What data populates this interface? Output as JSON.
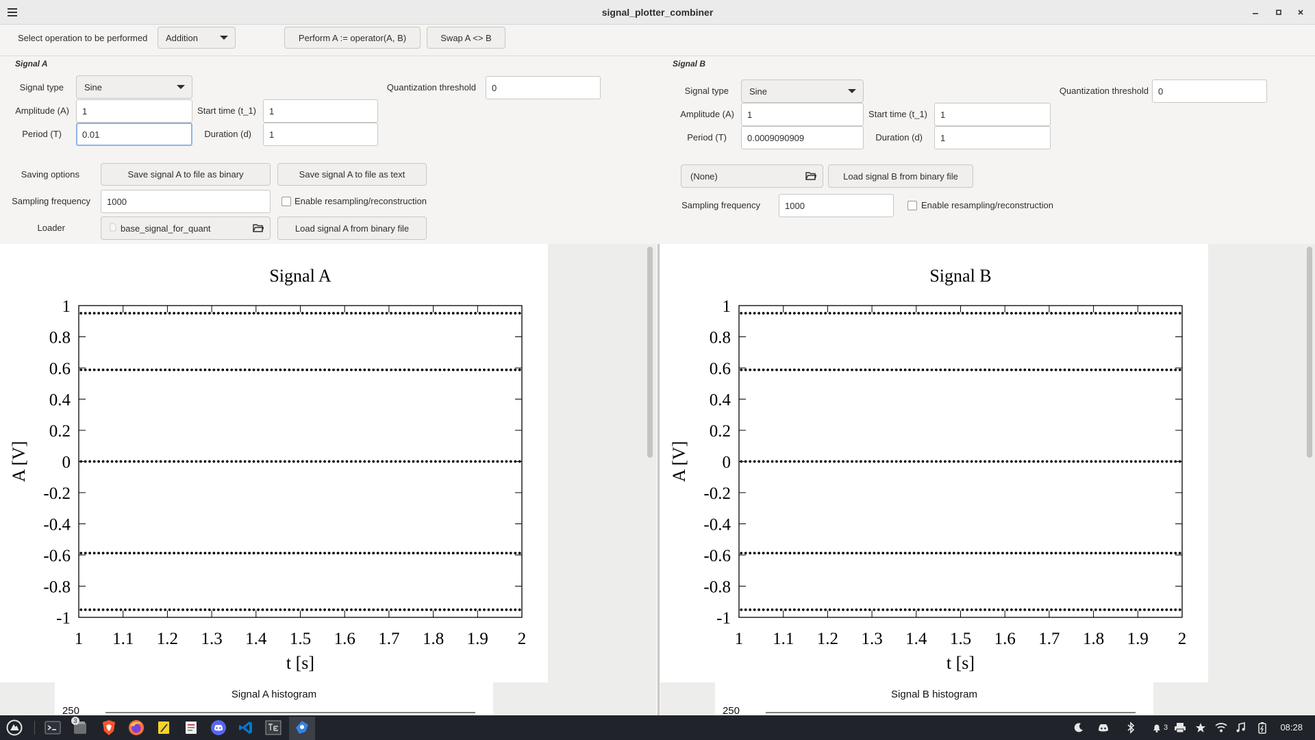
{
  "window": {
    "title": "signal_plotter_combiner"
  },
  "operation": {
    "label": "Select operation to be performed",
    "selected": "Addition",
    "perform_label": "Perform A := operator(A, B)",
    "swap_label": "Swap A <> B"
  },
  "signal_a": {
    "group_title": "Signal A",
    "type_label": "Signal type",
    "type_value": "Sine",
    "quant_label": "Quantization threshold",
    "quant_value": "0",
    "amplitude_label": "Amplitude (A)",
    "amplitude_value": "1",
    "start_label": "Start time (t_1)",
    "start_value": "1",
    "period_label": "Period (T)",
    "period_value": "0.01",
    "duration_label": "Duration (d)",
    "duration_value": "1",
    "saving_label": "Saving options",
    "save_binary_label": "Save signal A to file as binary",
    "save_text_label": "Save signal A to file as text",
    "sampling_label": "Sampling frequency",
    "sampling_value": "1000",
    "resample_label": "Enable resampling/reconstruction",
    "loader_label": "Loader",
    "loader_file": "base_signal_for_quant",
    "load_label": "Load signal  A from binary file"
  },
  "signal_b": {
    "group_title": "Signal B",
    "type_label": "Signal type",
    "type_value": "Sine",
    "quant_label": "Quantization threshold",
    "quant_value": "0",
    "amplitude_label": "Amplitude (A)",
    "amplitude_value": "1",
    "start_label": "Start time (t_1)",
    "start_value": "1",
    "period_label": "Period (T)",
    "period_value": "0.0009090909",
    "duration_label": "Duration (d)",
    "duration_value": "1",
    "loader_file": "(None)",
    "load_label": "Load signal  B from binary file",
    "sampling_label": "Sampling frequency",
    "sampling_value": "1000",
    "resample_label": "Enable resampling/reconstruction"
  },
  "chart_data": [
    {
      "type": "scatter",
      "title": "Signal A",
      "xlabel": "t [s]",
      "ylabel": "A [V]",
      "xlim": [
        1,
        2
      ],
      "ylim": [
        -1,
        1
      ],
      "xticks": [
        "1",
        "1.1",
        "1.2",
        "1.3",
        "1.4",
        "1.5",
        "1.6",
        "1.7",
        "1.8",
        "1.9",
        "2"
      ],
      "yticks": [
        "1",
        "0.8",
        "0.6",
        "0.4",
        "0.2",
        "0",
        "-0.2",
        "-0.4",
        "-0.6",
        "-0.8",
        "-1"
      ],
      "sample_levels": [
        0.951,
        0.588,
        0,
        -0.588,
        -0.951
      ],
      "samples_per_level": 100,
      "histogram_title": "Signal A histogram",
      "histogram_ymax": "250"
    },
    {
      "type": "scatter",
      "title": "Signal B",
      "xlabel": "t [s]",
      "ylabel": "A [V]",
      "xlim": [
        1,
        2
      ],
      "ylim": [
        -1,
        1
      ],
      "xticks": [
        "1",
        "1.1",
        "1.2",
        "1.3",
        "1.4",
        "1.5",
        "1.6",
        "1.7",
        "1.8",
        "1.9",
        "2"
      ],
      "yticks": [
        "1",
        "0.8",
        "0.6",
        "0.4",
        "0.2",
        "0",
        "-0.2",
        "-0.4",
        "-0.6",
        "-0.8",
        "-1"
      ],
      "sample_levels": [
        0.951,
        0.588,
        0,
        -0.588,
        -0.951
      ],
      "samples_per_level": 100,
      "histogram_title": "Signal B histogram",
      "histogram_ymax": "250"
    }
  ],
  "taskbar": {
    "apps": [
      "app-menu-icon",
      "terminal-icon",
      "files-icon",
      "brave-browser-icon",
      "firefox-icon",
      "notes-icon",
      "document-viewer-icon",
      "discord-icon",
      "vscode-icon",
      "texmaker-icon",
      "python-app-icon"
    ],
    "files_badge": "3",
    "tray_badge": "3",
    "clock": "08:28"
  }
}
